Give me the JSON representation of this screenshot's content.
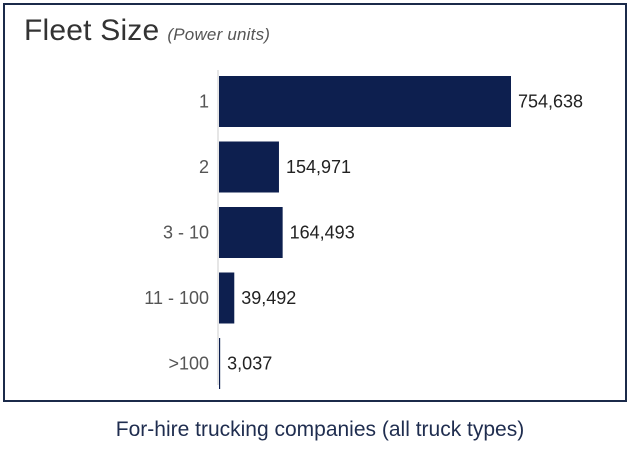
{
  "chart_data": {
    "type": "bar",
    "orientation": "horizontal",
    "title": "Fleet Size",
    "subtitle": "(Power units)",
    "categories": [
      "1",
      "2",
      "3 - 10",
      "11 - 100",
      ">100"
    ],
    "values": [
      754638,
      154971,
      164493,
      39492,
      3037
    ],
    "value_labels": [
      "754,638",
      "154,971",
      "164,493",
      "39,492",
      "3,037"
    ],
    "xlim": [
      0,
      754638
    ],
    "grid": false,
    "legend": "none",
    "bar_color": "#0d1f4f"
  },
  "footer": {
    "caption": "For-hire trucking companies (all truck types)"
  },
  "colors": {
    "bar": "#0d1f4f",
    "border": "#1b2a4a",
    "axis": "#cccccc"
  }
}
